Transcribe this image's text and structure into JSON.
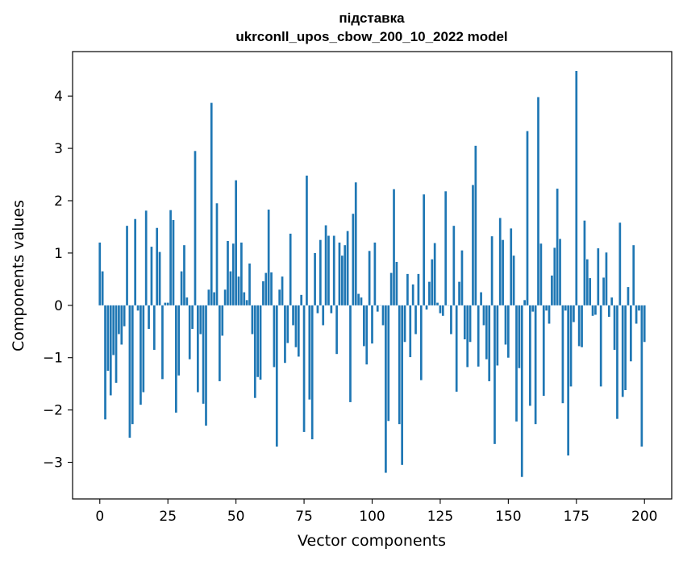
{
  "chart_data": {
    "type": "bar",
    "title_line1": "підставка",
    "title_line2": "ukrconll_upos_cbow_200_10_2022 model",
    "xlabel": "Vector components",
    "ylabel": "Components values",
    "xlim": [
      -10,
      210
    ],
    "ylim": [
      -3.7,
      4.85
    ],
    "x_ticks": [
      0,
      25,
      50,
      75,
      100,
      125,
      150,
      175,
      200
    ],
    "y_ticks": [
      -3,
      -2,
      -1,
      0,
      1,
      2,
      3,
      4
    ],
    "x_tick_labels": [
      "0",
      "25",
      "50",
      "75",
      "100",
      "125",
      "150",
      "175",
      "200"
    ],
    "y_tick_labels": [
      "−3",
      "−2",
      "−1",
      "0",
      "1",
      "2",
      "3",
      "4"
    ],
    "bar_color": "#1f77b4",
    "grid": false,
    "values": [
      1.2,
      0.65,
      -2.18,
      -1.25,
      -1.72,
      -0.95,
      -1.48,
      -0.55,
      -0.75,
      -0.4,
      1.52,
      -2.53,
      -2.27,
      1.65,
      -0.1,
      -1.9,
      -1.66,
      1.81,
      -0.45,
      1.12,
      -0.85,
      1.48,
      1.02,
      -1.41,
      0.05,
      0.05,
      1.82,
      1.63,
      -2.05,
      -1.34,
      0.65,
      1.15,
      0.15,
      -1.03,
      -0.45,
      2.95,
      -1.66,
      -0.55,
      -1.88,
      -2.3,
      0.3,
      3.87,
      0.25,
      1.95,
      -1.45,
      -0.58,
      0.3,
      1.23,
      0.65,
      1.18,
      2.39,
      0.55,
      1.2,
      0.25,
      0.1,
      0.8,
      -0.55,
      -1.77,
      -1.37,
      -1.42,
      0.46,
      0.62,
      1.83,
      0.63,
      -1.18,
      -2.7,
      0.3,
      0.55,
      -1.1,
      -0.72,
      1.37,
      -0.38,
      -0.8,
      -0.98,
      0.2,
      -2.42,
      2.48,
      -1.8,
      -2.56,
      1.0,
      -0.15,
      1.25,
      -0.38,
      1.53,
      1.33,
      -0.15,
      1.33,
      -0.93,
      1.2,
      0.95,
      1.15,
      1.42,
      -1.85,
      1.75,
      2.35,
      0.22,
      0.15,
      -0.78,
      -1.13,
      1.04,
      -0.73,
      1.2,
      -0.12,
      0.0,
      -0.38,
      -3.2,
      -2.21,
      0.62,
      2.22,
      0.83,
      -2.27,
      -3.05,
      -0.7,
      0.6,
      -0.99,
      0.4,
      -0.55,
      0.6,
      -1.43,
      2.12,
      -0.08,
      0.45,
      0.88,
      1.19,
      0.05,
      -0.15,
      -0.2,
      2.18,
      0.0,
      -0.55,
      1.52,
      -1.65,
      0.45,
      1.05,
      -0.65,
      -1.18,
      -0.7,
      2.3,
      3.05,
      -1.17,
      0.25,
      -0.38,
      -1.03,
      -1.45,
      1.32,
      -2.65,
      -1.15,
      1.67,
      1.25,
      -0.75,
      -1.0,
      1.47,
      0.95,
      -2.22,
      -1.2,
      -3.28,
      0.1,
      3.33,
      -1.92,
      -0.12,
      -2.27,
      3.98,
      1.18,
      -1.73,
      -0.1,
      -0.35,
      0.57,
      1.1,
      2.23,
      1.27,
      -1.87,
      -0.1,
      -2.87,
      -1.55,
      -0.32,
      4.48,
      -0.78,
      -0.8,
      1.62,
      0.88,
      0.52,
      -0.2,
      -0.18,
      1.09,
      -1.55,
      0.53,
      1.01,
      -0.22,
      0.15,
      -0.85,
      -2.17,
      1.58,
      -1.75,
      -1.62,
      0.35,
      -1.07,
      1.15,
      -0.35,
      -0.1,
      -2.7,
      -0.7
    ]
  }
}
